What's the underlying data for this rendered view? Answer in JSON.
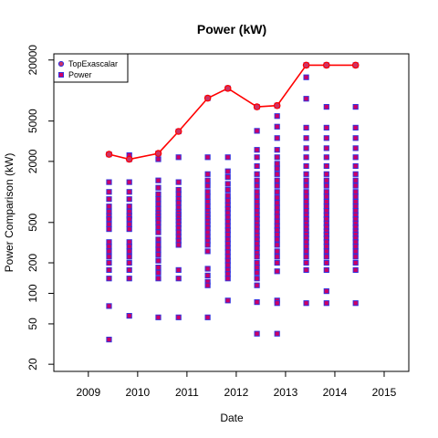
{
  "chart_data": {
    "type": "scatter",
    "title": "Power (kW)",
    "xlabel": "Date",
    "ylabel": "Power Comparison (kW)",
    "xlim": [
      2008.3,
      2015.5
    ],
    "ylim": [
      17,
      23000
    ],
    "y_scale": "log",
    "x_ticks": [
      2009,
      2010,
      2011,
      2012,
      2013,
      2014,
      2015
    ],
    "y_ticks": [
      20,
      50,
      100,
      200,
      500,
      2000,
      5000,
      20000
    ],
    "legend_position": "top-left",
    "colors": {
      "line": "#ff0000",
      "top_point_fill": "#cc3366",
      "point_fill": "#cc0066",
      "point_border": "#3333dd"
    },
    "series": [
      {
        "name": "TopExascalar",
        "style": "line-circle",
        "x": [
          2009.42,
          2009.83,
          2010.42,
          2010.83,
          2011.42,
          2011.83,
          2012.42,
          2012.83,
          2013.42,
          2013.83,
          2014.42
        ],
        "y": [
          2350,
          2100,
          2400,
          3950,
          8400,
          10500,
          6900,
          7100,
          17800,
          17800,
          17800
        ]
      },
      {
        "name": "Power",
        "style": "square",
        "groups": [
          {
            "x": 2009.42,
            "y": [
              2350,
              1250,
              1000,
              850,
              720,
              640,
              580,
              540,
              480,
              430,
              320,
              290,
              260,
              230,
              200,
              170,
              140,
              75,
              35
            ]
          },
          {
            "x": 2009.83,
            "y": [
              2300,
              2100,
              1250,
              1000,
              850,
              720,
              640,
              580,
              540,
              480,
              430,
              320,
              290,
              260,
              230,
              200,
              170,
              140,
              60
            ]
          },
          {
            "x": 2010.42,
            "y": [
              2400,
              2100,
              1300,
              1100,
              950,
              850,
              760,
              680,
              620,
              580,
              540,
              500,
              450,
              400,
              340,
              300,
              270,
              240,
              210,
              180,
              160,
              140,
              58
            ]
          },
          {
            "x": 2010.83,
            "y": [
              3950,
              2200,
              1250,
              1050,
              950,
              850,
              780,
              700,
              640,
              600,
              560,
              520,
              480,
              440,
              400,
              360,
              330,
              300,
              170,
              140,
              58
            ]
          },
          {
            "x": 2011.42,
            "y": [
              8400,
              2200,
              1500,
              1300,
              1150,
              1000,
              900,
              800,
              720,
              650,
              600,
              560,
              520,
              480,
              440,
              400,
              360,
              330,
              300,
              260,
              175,
              150,
              130,
              120,
              58
            ]
          },
          {
            "x": 2011.83,
            "y": [
              10500,
              2200,
              1600,
              1400,
              1200,
              1050,
              920,
              820,
              740,
              680,
              620,
              560,
              510,
              460,
              420,
              380,
              340,
              310,
              280,
              255,
              230,
              210,
              190,
              170,
              155,
              140,
              85
            ]
          },
          {
            "x": 2012.42,
            "y": [
              6900,
              4000,
              2600,
              2200,
              1800,
              1500,
              1300,
              1150,
              1000,
              900,
              800,
              720,
              650,
              590,
              540,
              490,
              450,
              410,
              370,
              340,
              310,
              280,
              250,
              230,
              200,
              180,
              160,
              140,
              120,
              82,
              40
            ]
          },
          {
            "x": 2012.83,
            "y": [
              7100,
              5600,
              4400,
              3400,
              2600,
              2200,
              1900,
              1700,
              1500,
              1300,
              1150,
              1000,
              880,
              780,
              700,
              630,
              570,
              510,
              460,
              420,
              380,
              340,
              300,
              260,
              230,
              200,
              165,
              85,
              80,
              40
            ]
          },
          {
            "x": 2013.42,
            "y": [
              17800,
              13500,
              8300,
              4300,
              3400,
              2700,
              2200,
              1800,
              1500,
              1300,
              1150,
              1000,
              900,
              800,
              720,
              650,
              590,
              540,
              490,
              450,
              410,
              380,
              350,
              320,
              290,
              260,
              230,
              200,
              170,
              80
            ]
          },
          {
            "x": 2013.83,
            "y": [
              17800,
              6900,
              4300,
              3400,
              2700,
              2200,
              1800,
              1500,
              1300,
              1150,
              1000,
              900,
              800,
              720,
              650,
              590,
              540,
              490,
              450,
              410,
              380,
              350,
              320,
              290,
              260,
              230,
              200,
              170,
              105,
              80
            ]
          },
          {
            "x": 2014.42,
            "y": [
              17800,
              6900,
              4300,
              3400,
              2700,
              2200,
              1800,
              1500,
              1300,
              1150,
              1000,
              900,
              800,
              720,
              650,
              590,
              540,
              490,
              450,
              410,
              380,
              350,
              320,
              290,
              260,
              230,
              200,
              170,
              80
            ]
          }
        ]
      }
    ]
  }
}
